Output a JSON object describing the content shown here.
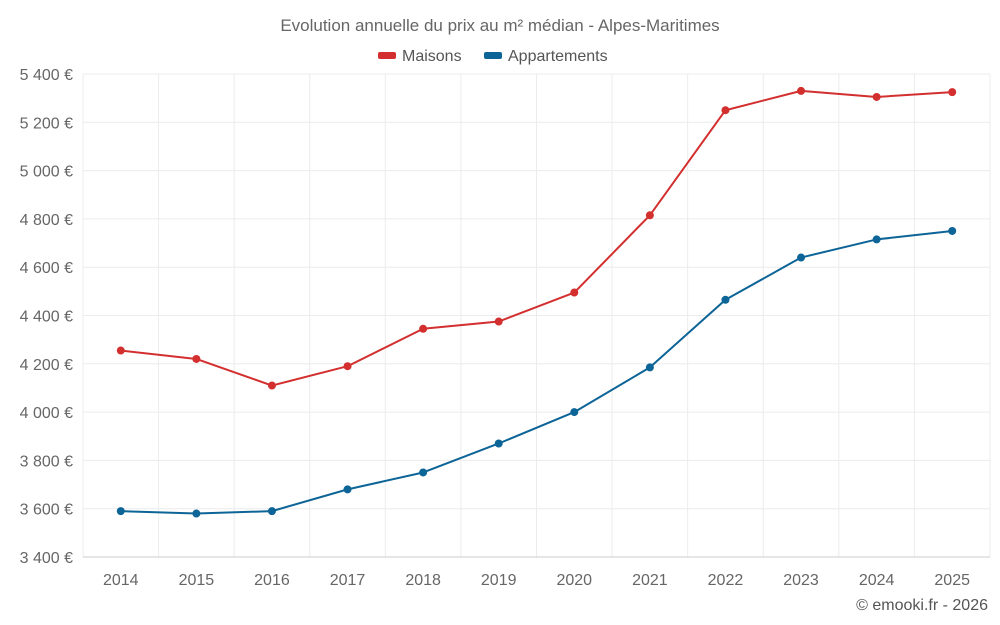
{
  "chart_data": {
    "type": "line",
    "title": "Evolution annuelle du prix au m² médian - Alpes-Maritimes",
    "categories": [
      "2014",
      "2015",
      "2016",
      "2017",
      "2018",
      "2019",
      "2020",
      "2021",
      "2022",
      "2023",
      "2024",
      "2025"
    ],
    "series": [
      {
        "name": "Maisons",
        "color": "#d32f2f",
        "values": [
          4255,
          4220,
          4110,
          4190,
          4345,
          4375,
          4495,
          4815,
          5250,
          5330,
          5305,
          5325
        ]
      },
      {
        "name": "Appartements",
        "color": "#0d6497",
        "values": [
          3590,
          3580,
          3590,
          3680,
          3750,
          3870,
          4000,
          4185,
          4465,
          4640,
          4715,
          4750
        ]
      }
    ],
    "ylim": [
      3400,
      5400
    ],
    "yticks": [
      3400,
      3600,
      3800,
      4000,
      4200,
      4400,
      4600,
      4800,
      5000,
      5200,
      5400
    ],
    "ytick_labels": [
      "3 400 €",
      "3 600 €",
      "3 800 €",
      "4 000 €",
      "4 200 €",
      "4 400 €",
      "4 600 €",
      "4 800 €",
      "5 000 €",
      "5 200 €",
      "5 400 €"
    ],
    "grid": true,
    "legend": "top-center"
  },
  "credit": "© emooki.fr - 2026"
}
